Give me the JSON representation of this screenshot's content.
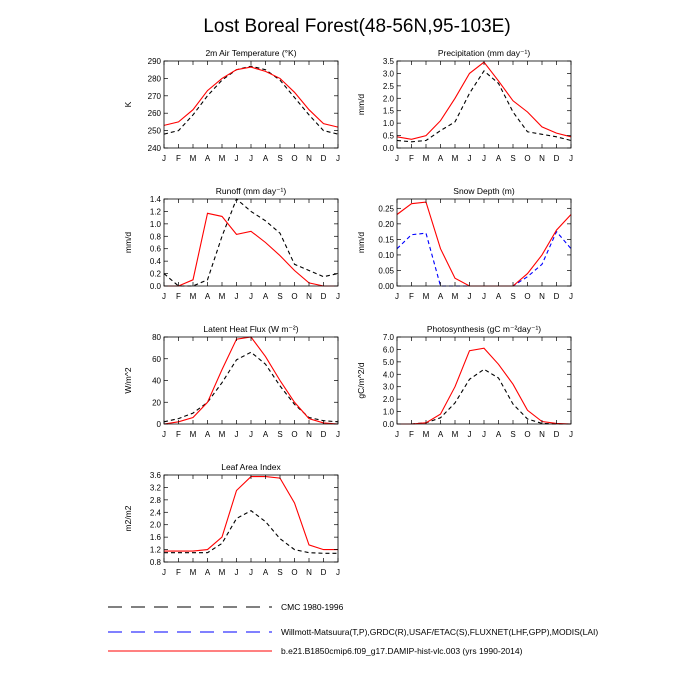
{
  "title": "Lost Boreal Forest(48-56N,95-103E)",
  "colors": {
    "cmc": "#000000",
    "obs": "#0000ff",
    "model": "#ff0000"
  },
  "legend": [
    {
      "key": "cmc",
      "label": "CMC 1980-1996",
      "style": "dashed",
      "color": "#000000"
    },
    {
      "key": "obs",
      "label": "Willmott-Matsuura(T,P),GRDC(R),USAF/ETAC(S),FLUXNET(LHF,GPP),MODIS(LAI)",
      "style": "dashed",
      "color": "#0000ff"
    },
    {
      "key": "model",
      "label": "b.e21.B1850cmip6.f09_g17.DAMIP-hist-vlc.003 (yrs 1990-2014)",
      "style": "solid",
      "color": "#ff0000"
    }
  ],
  "chart_data": [
    {
      "type": "line",
      "title": "2m Air Temperature (°K)",
      "ylabel": "K",
      "categories": [
        "J",
        "F",
        "M",
        "A",
        "M",
        "J",
        "J",
        "A",
        "S",
        "O",
        "N",
        "D",
        "J"
      ],
      "ylim": [
        240,
        290
      ],
      "yticks": [
        240,
        250,
        260,
        270,
        280,
        290
      ],
      "yticklabels": [
        "240",
        "250",
        "260",
        "270",
        "280",
        "290"
      ],
      "series": [
        {
          "key": "cmc",
          "style": "dashed",
          "values": [
            248,
            250,
            259,
            270,
            279,
            285,
            287,
            285,
            279,
            269,
            259,
            250,
            248
          ]
        },
        {
          "key": "model",
          "style": "solid",
          "values": [
            253,
            255,
            262,
            273,
            280,
            285,
            286.5,
            284,
            280,
            272,
            262,
            254,
            252
          ]
        }
      ]
    },
    {
      "type": "line",
      "title": "Precipitation (mm day⁻¹)",
      "ylabel": "mm/d",
      "categories": [
        "J",
        "F",
        "M",
        "A",
        "M",
        "J",
        "J",
        "A",
        "S",
        "O",
        "N",
        "D",
        "J"
      ],
      "ylim": [
        0,
        3.5
      ],
      "yticks": [
        0,
        0.5,
        1.0,
        1.5,
        2.0,
        2.5,
        3.0,
        3.5
      ],
      "yticklabels": [
        "0.0",
        "0.5",
        "1.0",
        "1.5",
        "2.0",
        "2.5",
        "3.0",
        "3.5"
      ],
      "series": [
        {
          "key": "cmc",
          "style": "dashed",
          "values": [
            0.3,
            0.25,
            0.3,
            0.7,
            1.05,
            2.2,
            3.1,
            2.6,
            1.45,
            0.65,
            0.55,
            0.45,
            0.3
          ]
        },
        {
          "key": "model",
          "style": "solid",
          "values": [
            0.45,
            0.35,
            0.5,
            1.1,
            2.0,
            3.0,
            3.45,
            2.7,
            1.9,
            1.45,
            0.85,
            0.6,
            0.45
          ]
        }
      ]
    },
    {
      "type": "line",
      "title": "Runoff (mm day⁻¹)",
      "ylabel": "mm/d",
      "categories": [
        "J",
        "F",
        "M",
        "A",
        "M",
        "J",
        "J",
        "A",
        "S",
        "O",
        "N",
        "D",
        "J"
      ],
      "ylim": [
        0,
        1.4
      ],
      "yticks": [
        0,
        0.2,
        0.4,
        0.6,
        0.8,
        1.0,
        1.2,
        1.4
      ],
      "yticklabels": [
        "0.0",
        "0.2",
        "0.4",
        "0.6",
        "0.8",
        "1.0",
        "1.2",
        "1.4"
      ],
      "series": [
        {
          "key": "cmc",
          "style": "dashed",
          "values": [
            0.2,
            0.0,
            0.0,
            0.1,
            0.8,
            1.4,
            1.2,
            1.05,
            0.85,
            0.35,
            0.25,
            0.15,
            0.2
          ]
        },
        {
          "key": "model",
          "style": "solid",
          "values": [
            0.0,
            0.0,
            0.1,
            1.17,
            1.12,
            0.83,
            0.88,
            0.7,
            0.49,
            0.25,
            0.05,
            0.0,
            0.0
          ]
        }
      ]
    },
    {
      "type": "line",
      "title": "Snow Depth (m)",
      "ylabel": "mm/d",
      "categories": [
        "J",
        "F",
        "M",
        "A",
        "M",
        "J",
        "J",
        "A",
        "S",
        "O",
        "N",
        "D",
        "J"
      ],
      "ylim": [
        0,
        0.28
      ],
      "yticks": [
        0,
        0.05,
        0.1,
        0.15,
        0.2,
        0.25
      ],
      "yticklabels": [
        "0.00",
        "0.05",
        "0.10",
        "0.15",
        "0.20",
        "0.25"
      ],
      "series": [
        {
          "key": "obs",
          "style": "dashed",
          "values": [
            0.12,
            0.165,
            0.17,
            0.0,
            0.0,
            0.0,
            0.0,
            0.0,
            0.0,
            0.03,
            0.07,
            0.175,
            0.12
          ]
        },
        {
          "key": "model",
          "style": "solid",
          "values": [
            0.23,
            0.265,
            0.27,
            0.12,
            0.025,
            0.0,
            0.0,
            0.0,
            0.0,
            0.04,
            0.1,
            0.18,
            0.23
          ]
        }
      ]
    },
    {
      "type": "line",
      "title": "Latent Heat Flux (W m⁻²)",
      "ylabel": "W/m^2",
      "categories": [
        "J",
        "F",
        "M",
        "A",
        "M",
        "J",
        "J",
        "A",
        "S",
        "O",
        "N",
        "D",
        "J"
      ],
      "ylim": [
        0,
        80
      ],
      "yticks": [
        0,
        20,
        40,
        60,
        80
      ],
      "yticklabels": [
        "0",
        "20",
        "40",
        "60",
        "80"
      ],
      "series": [
        {
          "key": "cmc",
          "style": "dashed",
          "values": [
            2,
            5,
            10,
            20,
            38,
            59,
            66,
            55,
            35,
            18,
            6,
            3,
            2
          ]
        },
        {
          "key": "model",
          "style": "solid",
          "values": [
            0,
            2,
            6,
            20,
            50,
            78,
            80,
            62,
            40,
            20,
            5,
            1,
            0
          ]
        }
      ]
    },
    {
      "type": "line",
      "title": "Photosynthesis (gC m⁻²day⁻¹)",
      "ylabel": "gC/m^2/d",
      "categories": [
        "J",
        "F",
        "M",
        "A",
        "M",
        "J",
        "J",
        "A",
        "S",
        "O",
        "N",
        "D",
        "J"
      ],
      "ylim": [
        0,
        7.0
      ],
      "yticks": [
        0,
        1,
        2,
        3,
        4,
        5,
        6,
        7
      ],
      "yticklabels": [
        "0.0",
        "1.0",
        "2.0",
        "3.0",
        "4.0",
        "5.0",
        "6.0",
        "7.0"
      ],
      "series": [
        {
          "key": "cmc",
          "style": "dashed",
          "values": [
            0.0,
            0.0,
            0.1,
            0.5,
            1.7,
            3.6,
            4.4,
            3.7,
            1.6,
            0.4,
            0.05,
            0.0,
            0.0
          ]
        },
        {
          "key": "model",
          "style": "solid",
          "values": [
            0.0,
            0.0,
            0.1,
            0.8,
            3.0,
            5.9,
            6.1,
            4.8,
            3.2,
            1.1,
            0.2,
            0.05,
            0.0
          ]
        }
      ]
    },
    {
      "type": "line",
      "title": "Leaf Area Index",
      "ylabel": "m2/m2",
      "categories": [
        "J",
        "F",
        "M",
        "A",
        "M",
        "J",
        "J",
        "A",
        "S",
        "O",
        "N",
        "D",
        "J"
      ],
      "ylim": [
        0.8,
        3.6
      ],
      "yticks": [
        0.8,
        1.2,
        1.6,
        2.0,
        2.4,
        2.8,
        3.2,
        3.6
      ],
      "yticklabels": [
        "0.8",
        "1.2",
        "1.6",
        "2.0",
        "2.4",
        "2.8",
        "3.2",
        "3.6"
      ],
      "series": [
        {
          "key": "cmc",
          "style": "dashed",
          "values": [
            1.1,
            1.1,
            1.1,
            1.1,
            1.4,
            2.2,
            2.45,
            2.1,
            1.55,
            1.2,
            1.1,
            1.08,
            1.08
          ]
        },
        {
          "key": "model",
          "style": "solid",
          "values": [
            1.15,
            1.15,
            1.15,
            1.2,
            1.6,
            3.1,
            3.55,
            3.55,
            3.5,
            2.7,
            1.35,
            1.2,
            1.2
          ]
        }
      ]
    }
  ]
}
